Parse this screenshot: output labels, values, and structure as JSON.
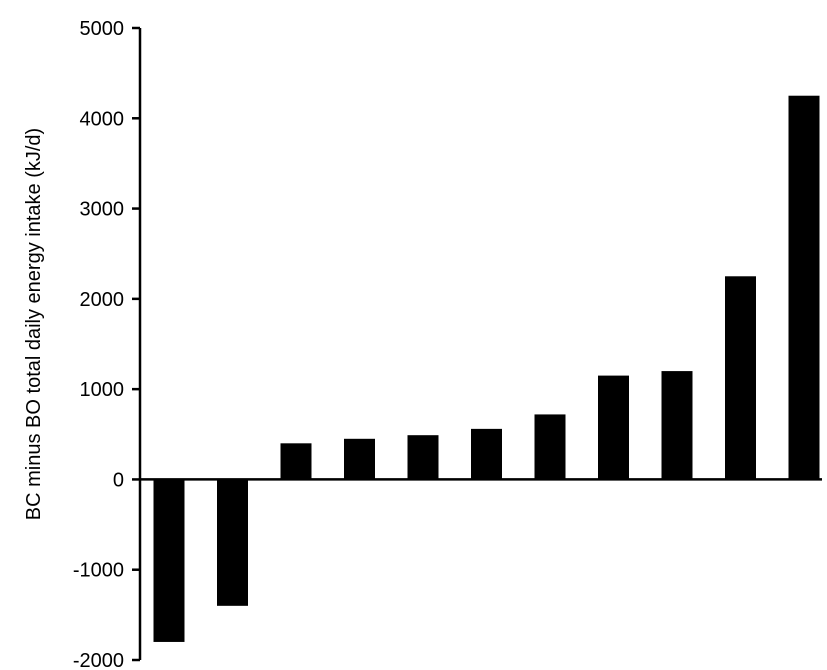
{
  "chart_data": {
    "type": "bar",
    "title": "",
    "xlabel": "",
    "ylabel": "BC minus BO total daily energy intake (kJ/d)",
    "ylim": [
      -2000,
      5000
    ],
    "yticks": [
      5000,
      4000,
      3000,
      2000,
      1000,
      0,
      -1000,
      -2000
    ],
    "values": [
      -1800,
      -1400,
      400,
      450,
      490,
      560,
      720,
      1150,
      1200,
      2250,
      4250
    ],
    "grid": false,
    "legend": "none",
    "bar_color": "#000000"
  }
}
